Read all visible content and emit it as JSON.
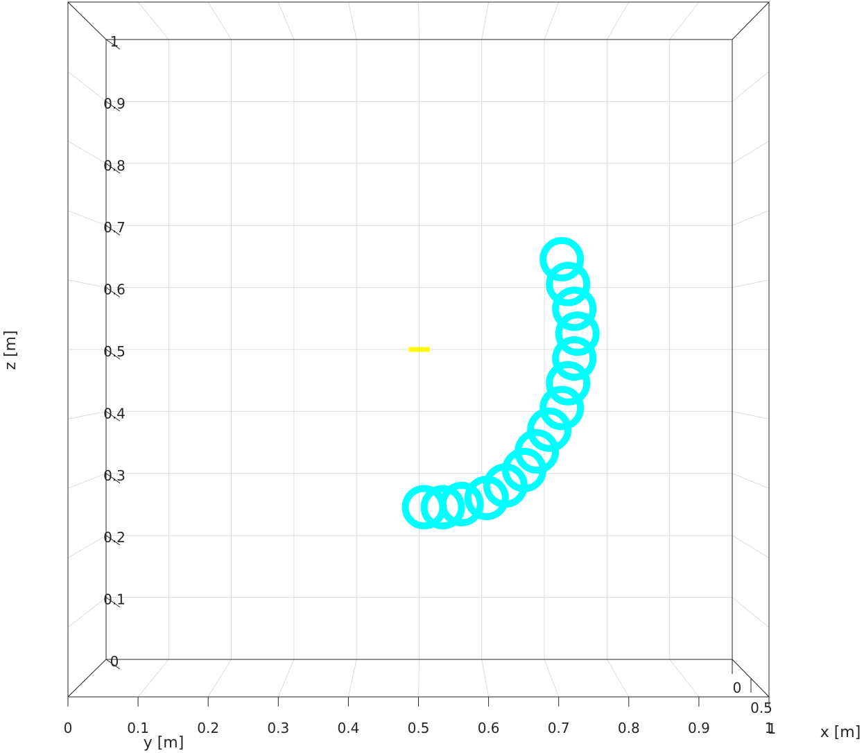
{
  "chart_data": {
    "type": "scatter",
    "title": "",
    "xlabel": "x [m]",
    "ylabel": "y [m]",
    "zlabel": "z [m]",
    "view": "3d-near-front",
    "grid": true,
    "ylim": [
      0,
      1
    ],
    "zlim": [
      0,
      1
    ],
    "xlim": [
      0,
      1
    ],
    "y_ticks": [
      "0",
      "0.1",
      "0.2",
      "0.3",
      "0.4",
      "0.5",
      "0.6",
      "0.7",
      "0.8",
      "0.9",
      "1"
    ],
    "z_ticks": [
      "0",
      "0.1",
      "0.2",
      "0.3",
      "0.4",
      "0.5",
      "0.6",
      "0.7",
      "0.8",
      "0.9",
      "1"
    ],
    "x_ticks": [
      "0",
      "0.5",
      "1"
    ],
    "series": [
      {
        "kind": "trajectory",
        "color": "#00FFFF",
        "description_points": [
          [
            0.5,
            0.25
          ],
          [
            0.53,
            0.25
          ],
          [
            0.56,
            0.255
          ],
          [
            0.6,
            0.265
          ],
          [
            0.63,
            0.285
          ],
          [
            0.66,
            0.31
          ],
          [
            0.68,
            0.34
          ],
          [
            0.7,
            0.375
          ],
          [
            0.72,
            0.41
          ],
          [
            0.73,
            0.45
          ],
          [
            0.74,
            0.49
          ],
          [
            0.745,
            0.53
          ],
          [
            0.74,
            0.57
          ],
          [
            0.73,
            0.61
          ],
          [
            0.72,
            0.65
          ]
        ]
      },
      {
        "kind": "target-marker",
        "color": "#FFFF00",
        "point": [
          0.5,
          0.5
        ]
      }
    ]
  },
  "colors": {
    "axis": "#262626",
    "grid": "#dcdcdc",
    "trajectory": "#00FFFF",
    "target": "#FFFF00"
  }
}
